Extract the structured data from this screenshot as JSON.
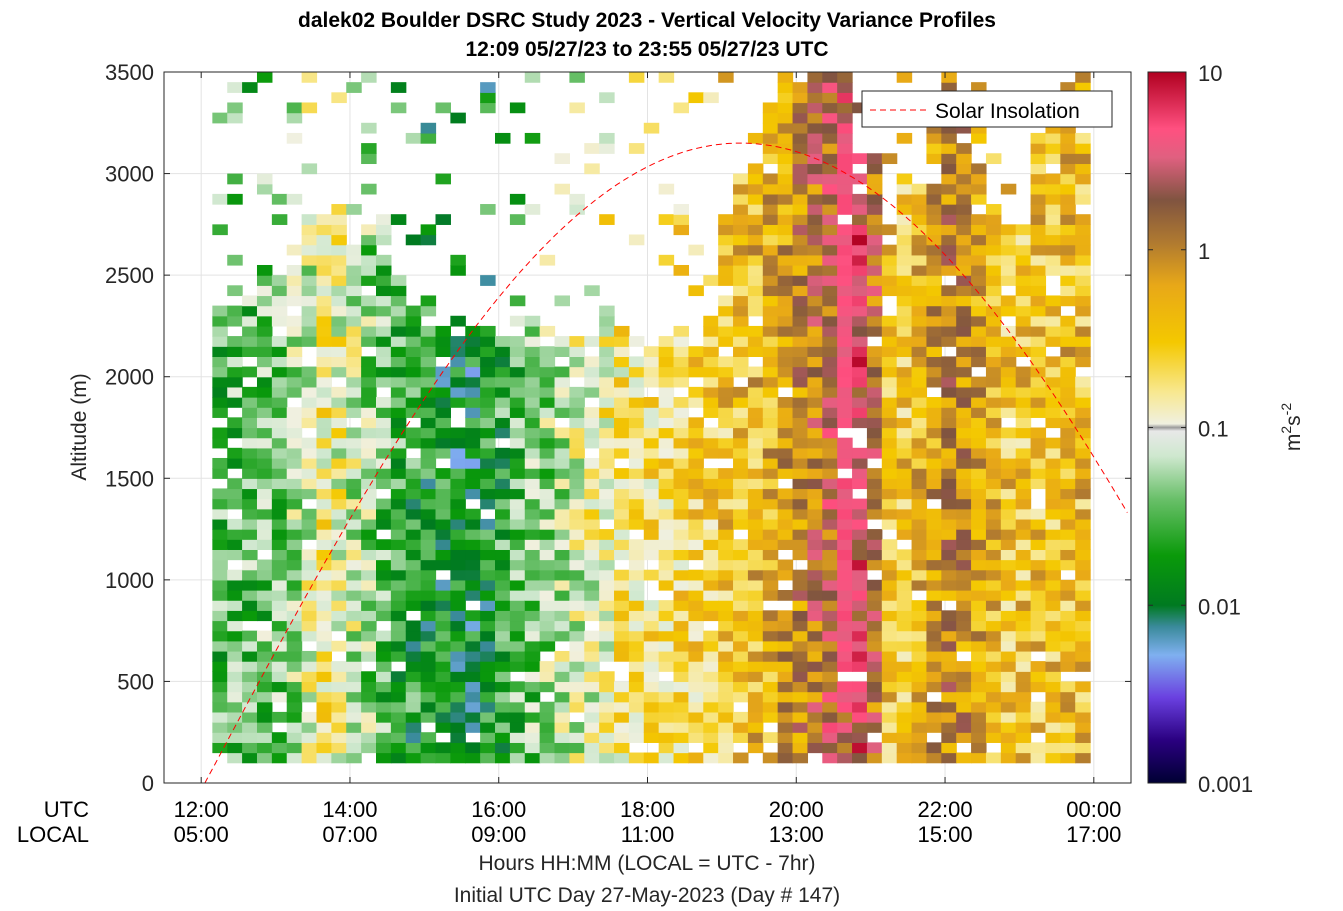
{
  "figure": {
    "title_line1": "dalek02 Boulder DSRC Study 2023 - Vertical Velocity Variance Profiles",
    "title_line2": "12:09 05/27/23 to 23:55 05/27/23  UTC",
    "row_label_utc": "UTC",
    "row_label_local": "LOCAL",
    "xlabel_line1": "Hours HH:MM  (LOCAL = UTC - 7hr)",
    "xlabel_line2": "Initial UTC Day 27-May-2023 (Day # 147)",
    "ylabel": "Altitude (m)",
    "legend_label": "Solar Insolation"
  },
  "chart_data": {
    "type": "heatmap",
    "title": "dalek02 Boulder DSRC Study 2023 - Vertical Velocity Variance Profiles",
    "subtitle": "12:09 05/27/23 to 23:55 05/27/23  UTC",
    "xlabel": "Hours HH:MM  (LOCAL = UTC - 7hr)",
    "ylabel": "Altitude (m)",
    "xlim_utc_hours": [
      11.5,
      24.5
    ],
    "ylim": [
      0,
      3500
    ],
    "x_ticks": [
      {
        "utc": "12:00",
        "local": "05:00",
        "hour": 12
      },
      {
        "utc": "14:00",
        "local": "07:00",
        "hour": 14
      },
      {
        "utc": "16:00",
        "local": "09:00",
        "hour": 16
      },
      {
        "utc": "18:00",
        "local": "11:00",
        "hour": 18
      },
      {
        "utc": "20:00",
        "local": "13:00",
        "hour": 20
      },
      {
        "utc": "22:00",
        "local": "15:00",
        "hour": 22
      },
      {
        "utc": "00:00",
        "local": "17:00",
        "hour": 24
      }
    ],
    "y_ticks": [
      0,
      500,
      1000,
      1500,
      2000,
      2500,
      3000,
      3500
    ],
    "grid": true,
    "legend_position": "top-right",
    "colorbar": {
      "label": "m2s-2",
      "scale": "log",
      "range": [
        0.001,
        10
      ],
      "ticks": [
        {
          "value": 10,
          "label": "10"
        },
        {
          "value": 1,
          "label": "1"
        },
        {
          "value": 0.1,
          "label": "0.1"
        },
        {
          "value": 0.01,
          "label": "0.01"
        },
        {
          "value": 0.001,
          "label": "0.001"
        }
      ]
    },
    "bins": {
      "time_start_utc_hour": 12.15,
      "time_step_hours": 0.2,
      "time_count": 59,
      "altitude_start_m": 100,
      "altitude_step_m": 50,
      "altitude_count": 68
    },
    "variance_log10_profiles": [
      {
        "utc_hour": 12.2,
        "top_m": 2300,
        "log10_variance": -1.5
      },
      {
        "utc_hour": 13.0,
        "top_m": 2600,
        "log10_variance": -1.4
      },
      {
        "utc_hour": 13.6,
        "top_m": 2700,
        "log10_variance": -0.8
      },
      {
        "utc_hour": 14.5,
        "top_m": 2550,
        "log10_variance": -1.6
      },
      {
        "utc_hour": 15.5,
        "top_m": 2200,
        "log10_variance": -1.9
      },
      {
        "utc_hour": 16.5,
        "top_m": 2150,
        "log10_variance": -1.3
      },
      {
        "utc_hour": 17.5,
        "top_m": 2200,
        "log10_variance": -0.8
      },
      {
        "utc_hour": 18.6,
        "top_m": 2150,
        "log10_variance": -0.6
      },
      {
        "utc_hour": 19.6,
        "top_m": 3450,
        "log10_variance": -0.3
      },
      {
        "utc_hour": 20.4,
        "top_m": 3500,
        "log10_variance": 0.3
      },
      {
        "utc_hour": 20.8,
        "top_m": 3200,
        "log10_variance": 0.6
      },
      {
        "utc_hour": 21.2,
        "top_m": 2700,
        "log10_variance": -0.6
      },
      {
        "utc_hour": 22.0,
        "top_m": 3500,
        "log10_variance": 0.0
      },
      {
        "utc_hour": 22.8,
        "top_m": 2650,
        "log10_variance": -0.5
      },
      {
        "utc_hour": 23.6,
        "top_m": 3500,
        "log10_variance": -0.4
      }
    ],
    "solar_insolation": {
      "name": "Solar Insolation",
      "style": "dashed",
      "color": "#ff0000",
      "noon_utc_hour": 19.25,
      "peak_altitude_m": 3150,
      "half_width_hours": 7.2
    }
  }
}
